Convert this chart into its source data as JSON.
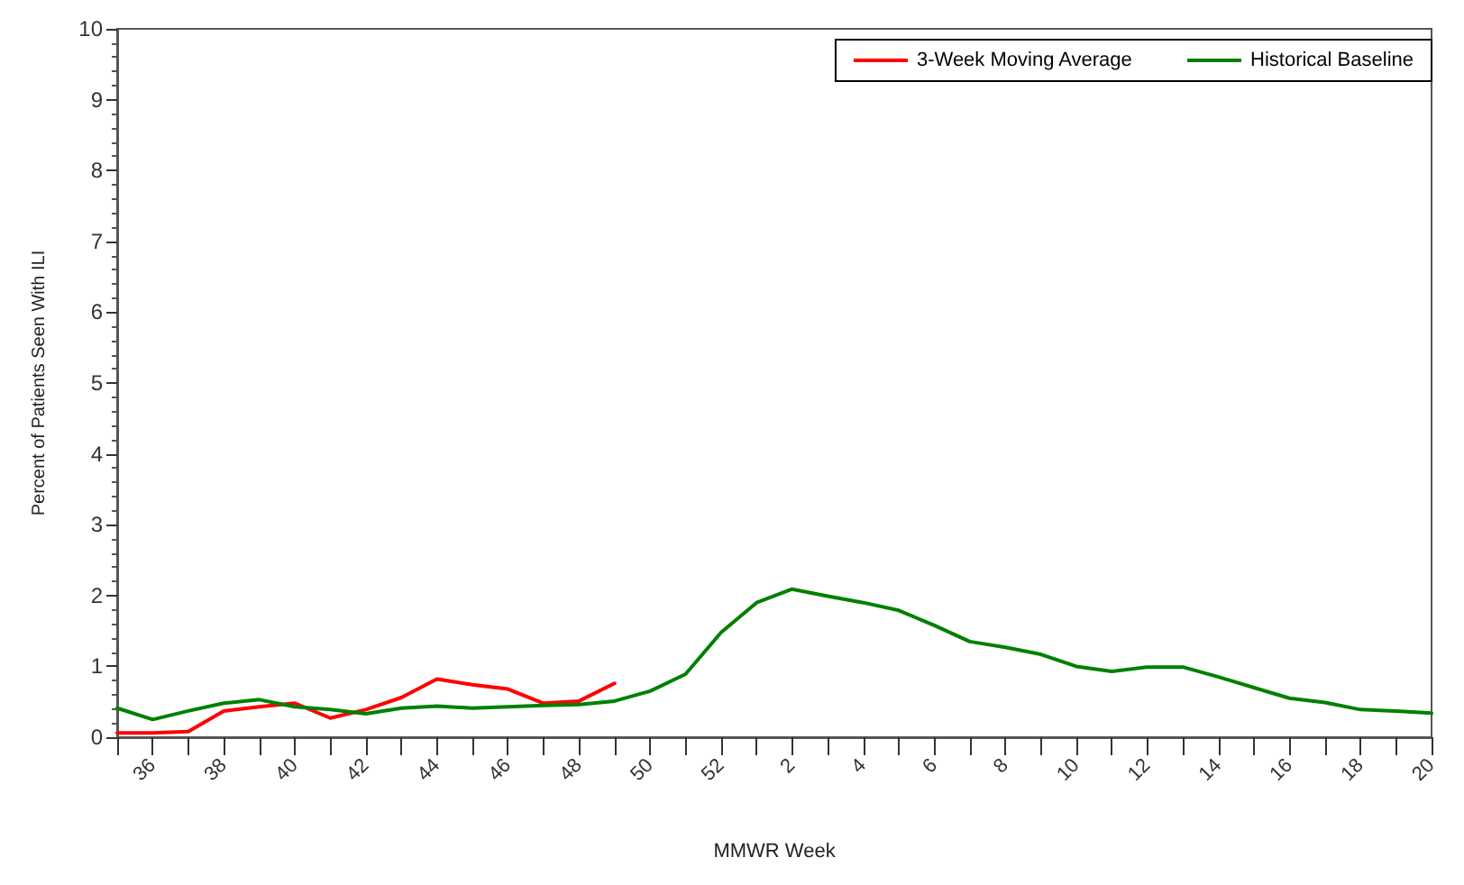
{
  "chart_data": {
    "type": "line",
    "xlabel": "MMWR Week",
    "ylabel": "Percent of Patients Seen With ILI",
    "categories": [
      null,
      "36",
      null,
      "38",
      null,
      "40",
      null,
      "42",
      null,
      "44",
      null,
      "46",
      null,
      "48",
      null,
      "50",
      null,
      "52",
      null,
      "2",
      null,
      "4",
      null,
      "6",
      null,
      "8",
      null,
      "10",
      null,
      "12",
      null,
      "14",
      null,
      "16",
      null,
      "18",
      null,
      "20"
    ],
    "series": [
      {
        "name": "3-Week Moving Average",
        "color": "#ff0000",
        "values": [
          0.06,
          0.06,
          0.08,
          0.37,
          0.43,
          0.48,
          0.27,
          0.39,
          0.56,
          0.82,
          0.74,
          0.68,
          0.48,
          0.51,
          0.76,
          null,
          null,
          null,
          null,
          null,
          null,
          null,
          null,
          null,
          null,
          null,
          null,
          null,
          null,
          null,
          null,
          null,
          null,
          null,
          null,
          null,
          null,
          null
        ]
      },
      {
        "name": "Historical Baseline",
        "color": "#008000",
        "values": [
          0.41,
          0.25,
          0.37,
          0.48,
          0.53,
          0.43,
          0.39,
          0.33,
          0.41,
          0.44,
          0.41,
          0.43,
          0.45,
          0.46,
          0.51,
          0.65,
          0.89,
          1.48,
          1.9,
          2.09,
          1.99,
          1.9,
          1.79,
          1.58,
          1.35,
          1.27,
          1.17,
          1.0,
          0.93,
          0.99,
          0.99,
          0.85,
          0.7,
          0.55,
          0.49,
          0.39,
          0.37,
          0.34
        ]
      }
    ],
    "ylim": [
      0,
      10
    ],
    "yticks": [
      0,
      1,
      2,
      3,
      4,
      5,
      6,
      7,
      8,
      9,
      10
    ],
    "grid": false,
    "legend": "top right",
    "marker": "none",
    "line_style": "solid"
  }
}
